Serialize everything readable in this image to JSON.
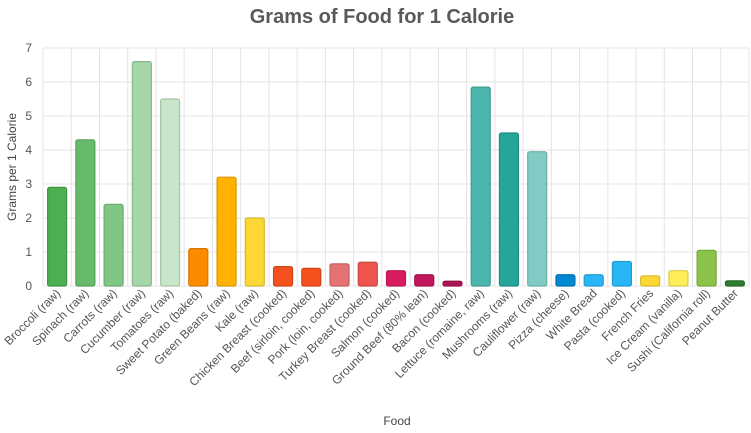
{
  "chart_data": {
    "type": "bar",
    "title": "Grams of Food for 1 Calorie",
    "xlabel": "Food",
    "ylabel": "Grams per 1 Calorie",
    "ylim": [
      0,
      7
    ],
    "yticks": [
      "0",
      "1",
      "2",
      "3",
      "4",
      "5",
      "6",
      "7"
    ],
    "grid": true,
    "legend": "none",
    "categories": [
      "Broccoli (raw)",
      "Spinach (raw)",
      "Carrots (raw)",
      "Cucumber (raw)",
      "Tomatoes (raw)",
      "Sweet Potato (baked)",
      "Green Beans (raw)",
      "Kale (raw)",
      "Chicken Breast (cooked)",
      "Beef (sirloin, cooked)",
      "Pork (loin, cooked)",
      "Turkey Breast (cooked)",
      "Salmon (cooked)",
      "Ground Beef (80% lean)",
      "Bacon (cooked)",
      "Lettuce (romaine, raw)",
      "Mushrooms (raw)",
      "Cauliflower (raw)",
      "Pizza (cheese)",
      "White Bread",
      "Pasta (cooked)",
      "French Fries",
      "Ice Cream (vanilla)",
      "Sushi (California roll)",
      "Peanut Butter"
    ],
    "values": [
      2.9,
      4.3,
      2.4,
      6.6,
      5.5,
      1.1,
      3.2,
      2.0,
      0.57,
      0.52,
      0.65,
      0.7,
      0.45,
      0.33,
      0.14,
      5.85,
      4.5,
      3.95,
      0.33,
      0.33,
      0.72,
      0.3,
      0.45,
      1.05,
      0.15
    ],
    "colors": [
      "#4caf50",
      "#66bb6a",
      "#81c784",
      "#a5d6a7",
      "#c8e6c9",
      "#fb8c00",
      "#ffb300",
      "#fdd835",
      "#f4511e",
      "#f4511e",
      "#e57373",
      "#ef5350",
      "#d81b60",
      "#c2185b",
      "#ad1457",
      "#4db6ac",
      "#26a69a",
      "#80cbc4",
      "#0288d1",
      "#29b6f6",
      "#29b6f6",
      "#fdd835",
      "#ffee58",
      "#8bc34a",
      "#2e7d32"
    ]
  }
}
